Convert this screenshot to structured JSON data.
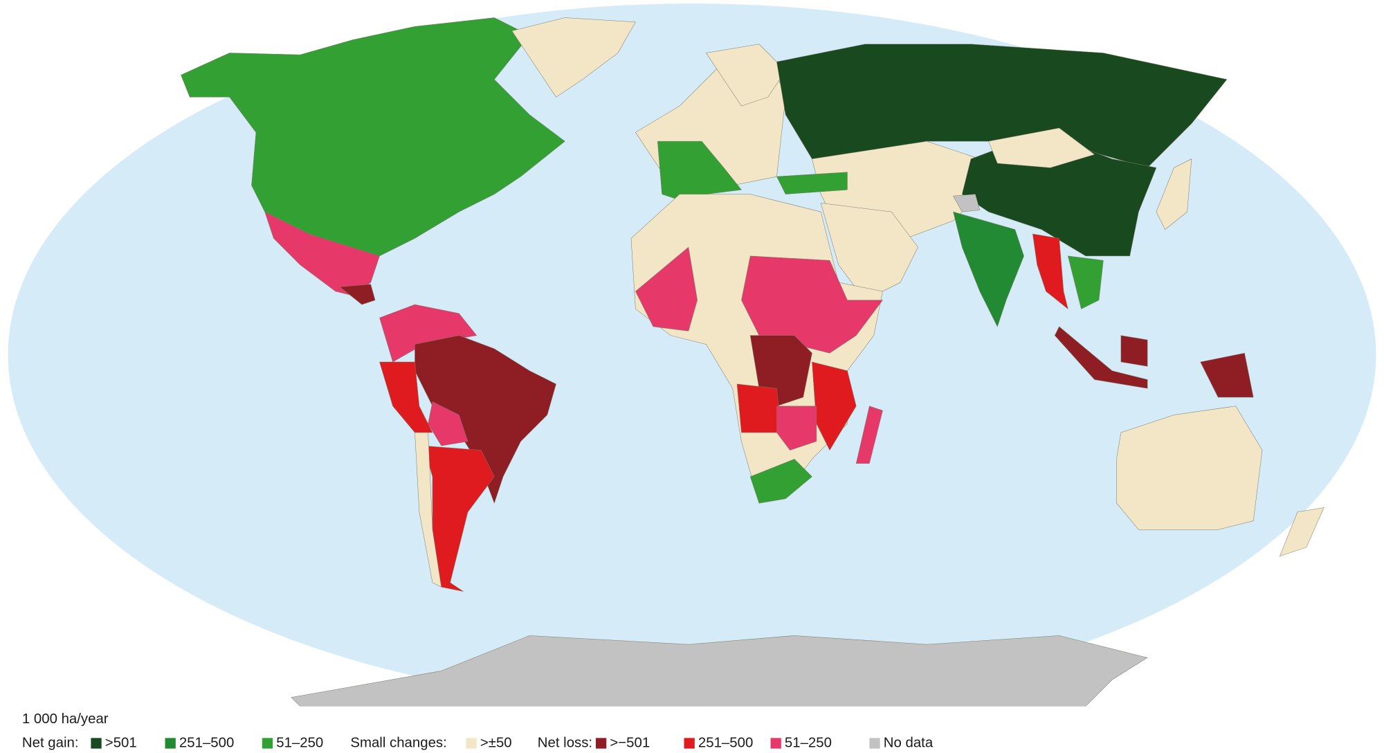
{
  "legend": {
    "unit": "1 000 ha/year",
    "groups": [
      {
        "label": "Net gain:",
        "items": [
          {
            "label": ">501",
            "color": "#19491e"
          },
          {
            "label": "251–500",
            "color": "#238a34"
          },
          {
            "label": "51–250",
            "color": "#33a033"
          }
        ]
      },
      {
        "label": "Small changes:",
        "items": [
          {
            "label": ">±50",
            "color": "#f3e6c7"
          }
        ]
      },
      {
        "label": "Net loss:",
        "items": [
          {
            "label": ">−501",
            "color": "#8e1e24"
          },
          {
            "label": "251–500",
            "color": "#e01b1f"
          },
          {
            "label": "51–250",
            "color": "#e6396a"
          }
        ]
      },
      {
        "items": [
          {
            "label": "No data",
            "color": "#c2c2c2"
          }
        ]
      }
    ]
  }
}
